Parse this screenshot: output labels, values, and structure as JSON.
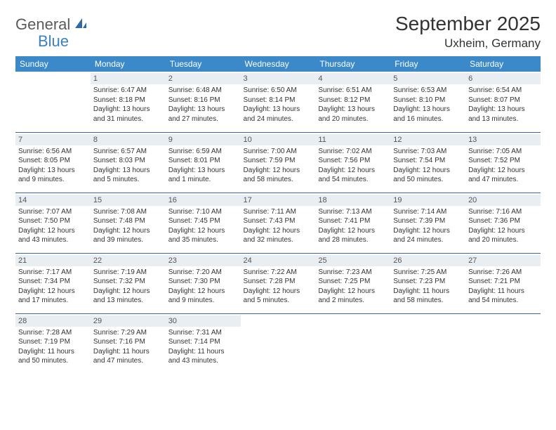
{
  "logo": {
    "text1": "General",
    "text2": "Blue"
  },
  "title": "September 2025",
  "location": "Uxheim, Germany",
  "colors": {
    "header_bg": "#3b89c9",
    "header_fg": "#ffffff",
    "cell_border": "#3b67a0",
    "daynum_bg": "#e9eef2",
    "logo_blue": "#3b7fc4"
  },
  "weekdays": [
    "Sunday",
    "Monday",
    "Tuesday",
    "Wednesday",
    "Thursday",
    "Friday",
    "Saturday"
  ],
  "weeks": [
    [
      null,
      {
        "n": "1",
        "sr": "Sunrise: 6:47 AM",
        "ss": "Sunset: 8:18 PM",
        "dl": "Daylight: 13 hours and 31 minutes."
      },
      {
        "n": "2",
        "sr": "Sunrise: 6:48 AM",
        "ss": "Sunset: 8:16 PM",
        "dl": "Daylight: 13 hours and 27 minutes."
      },
      {
        "n": "3",
        "sr": "Sunrise: 6:50 AM",
        "ss": "Sunset: 8:14 PM",
        "dl": "Daylight: 13 hours and 24 minutes."
      },
      {
        "n": "4",
        "sr": "Sunrise: 6:51 AM",
        "ss": "Sunset: 8:12 PM",
        "dl": "Daylight: 13 hours and 20 minutes."
      },
      {
        "n": "5",
        "sr": "Sunrise: 6:53 AM",
        "ss": "Sunset: 8:10 PM",
        "dl": "Daylight: 13 hours and 16 minutes."
      },
      {
        "n": "6",
        "sr": "Sunrise: 6:54 AM",
        "ss": "Sunset: 8:07 PM",
        "dl": "Daylight: 13 hours and 13 minutes."
      }
    ],
    [
      {
        "n": "7",
        "sr": "Sunrise: 6:56 AM",
        "ss": "Sunset: 8:05 PM",
        "dl": "Daylight: 13 hours and 9 minutes."
      },
      {
        "n": "8",
        "sr": "Sunrise: 6:57 AM",
        "ss": "Sunset: 8:03 PM",
        "dl": "Daylight: 13 hours and 5 minutes."
      },
      {
        "n": "9",
        "sr": "Sunrise: 6:59 AM",
        "ss": "Sunset: 8:01 PM",
        "dl": "Daylight: 13 hours and 1 minute."
      },
      {
        "n": "10",
        "sr": "Sunrise: 7:00 AM",
        "ss": "Sunset: 7:59 PM",
        "dl": "Daylight: 12 hours and 58 minutes."
      },
      {
        "n": "11",
        "sr": "Sunrise: 7:02 AM",
        "ss": "Sunset: 7:56 PM",
        "dl": "Daylight: 12 hours and 54 minutes."
      },
      {
        "n": "12",
        "sr": "Sunrise: 7:03 AM",
        "ss": "Sunset: 7:54 PM",
        "dl": "Daylight: 12 hours and 50 minutes."
      },
      {
        "n": "13",
        "sr": "Sunrise: 7:05 AM",
        "ss": "Sunset: 7:52 PM",
        "dl": "Daylight: 12 hours and 47 minutes."
      }
    ],
    [
      {
        "n": "14",
        "sr": "Sunrise: 7:07 AM",
        "ss": "Sunset: 7:50 PM",
        "dl": "Daylight: 12 hours and 43 minutes."
      },
      {
        "n": "15",
        "sr": "Sunrise: 7:08 AM",
        "ss": "Sunset: 7:48 PM",
        "dl": "Daylight: 12 hours and 39 minutes."
      },
      {
        "n": "16",
        "sr": "Sunrise: 7:10 AM",
        "ss": "Sunset: 7:45 PM",
        "dl": "Daylight: 12 hours and 35 minutes."
      },
      {
        "n": "17",
        "sr": "Sunrise: 7:11 AM",
        "ss": "Sunset: 7:43 PM",
        "dl": "Daylight: 12 hours and 32 minutes."
      },
      {
        "n": "18",
        "sr": "Sunrise: 7:13 AM",
        "ss": "Sunset: 7:41 PM",
        "dl": "Daylight: 12 hours and 28 minutes."
      },
      {
        "n": "19",
        "sr": "Sunrise: 7:14 AM",
        "ss": "Sunset: 7:39 PM",
        "dl": "Daylight: 12 hours and 24 minutes."
      },
      {
        "n": "20",
        "sr": "Sunrise: 7:16 AM",
        "ss": "Sunset: 7:36 PM",
        "dl": "Daylight: 12 hours and 20 minutes."
      }
    ],
    [
      {
        "n": "21",
        "sr": "Sunrise: 7:17 AM",
        "ss": "Sunset: 7:34 PM",
        "dl": "Daylight: 12 hours and 17 minutes."
      },
      {
        "n": "22",
        "sr": "Sunrise: 7:19 AM",
        "ss": "Sunset: 7:32 PM",
        "dl": "Daylight: 12 hours and 13 minutes."
      },
      {
        "n": "23",
        "sr": "Sunrise: 7:20 AM",
        "ss": "Sunset: 7:30 PM",
        "dl": "Daylight: 12 hours and 9 minutes."
      },
      {
        "n": "24",
        "sr": "Sunrise: 7:22 AM",
        "ss": "Sunset: 7:28 PM",
        "dl": "Daylight: 12 hours and 5 minutes."
      },
      {
        "n": "25",
        "sr": "Sunrise: 7:23 AM",
        "ss": "Sunset: 7:25 PM",
        "dl": "Daylight: 12 hours and 2 minutes."
      },
      {
        "n": "26",
        "sr": "Sunrise: 7:25 AM",
        "ss": "Sunset: 7:23 PM",
        "dl": "Daylight: 11 hours and 58 minutes."
      },
      {
        "n": "27",
        "sr": "Sunrise: 7:26 AM",
        "ss": "Sunset: 7:21 PM",
        "dl": "Daylight: 11 hours and 54 minutes."
      }
    ],
    [
      {
        "n": "28",
        "sr": "Sunrise: 7:28 AM",
        "ss": "Sunset: 7:19 PM",
        "dl": "Daylight: 11 hours and 50 minutes."
      },
      {
        "n": "29",
        "sr": "Sunrise: 7:29 AM",
        "ss": "Sunset: 7:16 PM",
        "dl": "Daylight: 11 hours and 47 minutes."
      },
      {
        "n": "30",
        "sr": "Sunrise: 7:31 AM",
        "ss": "Sunset: 7:14 PM",
        "dl": "Daylight: 11 hours and 43 minutes."
      },
      null,
      null,
      null,
      null
    ]
  ]
}
